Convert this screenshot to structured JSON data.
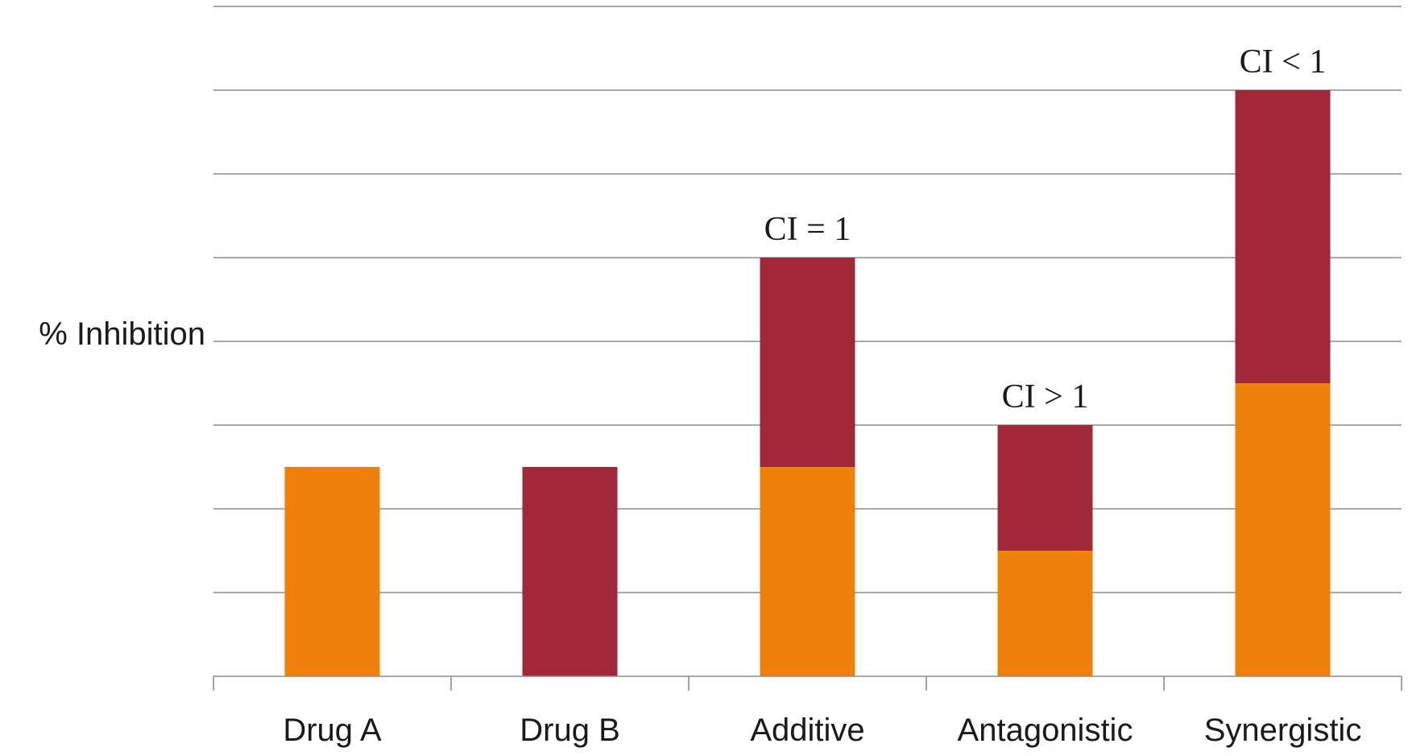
{
  "chart_data": {
    "type": "bar",
    "stacked": true,
    "ylabel": "% Inhibition",
    "xlabel": "",
    "ylim": [
      0,
      8
    ],
    "grid": true,
    "categories": [
      "Drug A",
      "Drug B",
      "Additive",
      "Antagonistic",
      "Synergistic"
    ],
    "series": [
      {
        "values": [
          2.5,
          0,
          2.5,
          1.5,
          3.5
        ],
        "color": "#ef8009"
      },
      {
        "values": [
          0,
          2.5,
          2.5,
          1.5,
          3.5
        ],
        "color": "#a02838"
      }
    ],
    "annotations": [
      "",
      "",
      "CI = 1",
      "CI > 1",
      "CI < 1"
    ]
  }
}
